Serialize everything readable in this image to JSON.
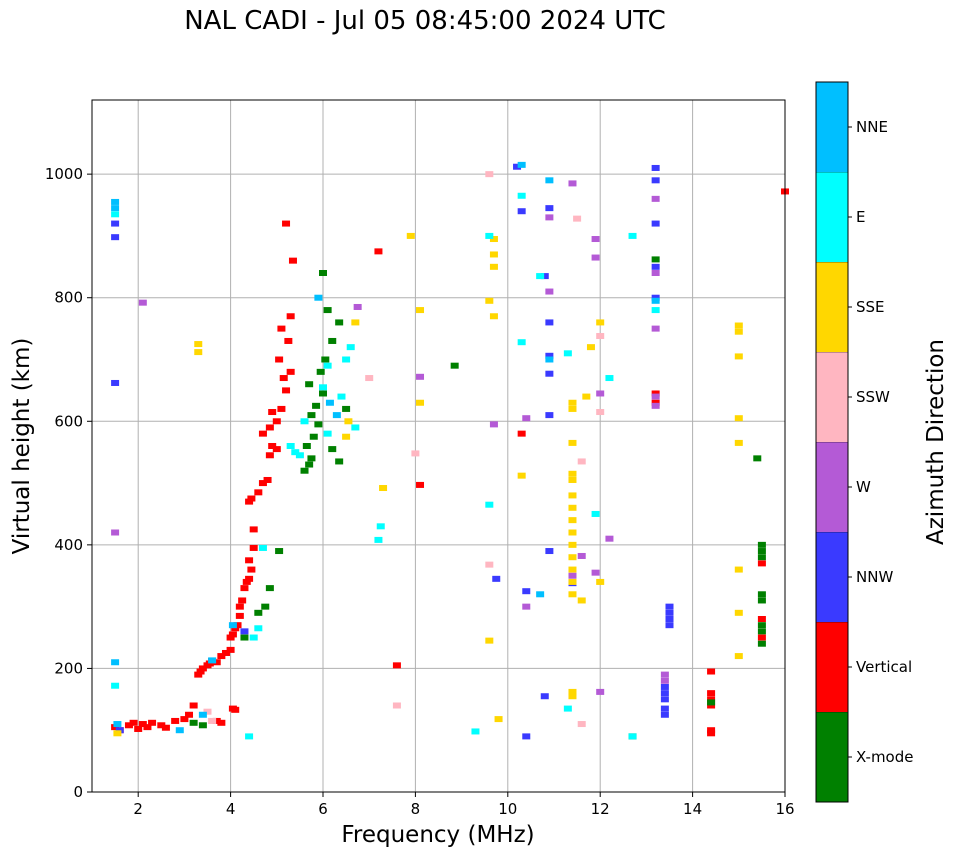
{
  "chart_data": {
    "type": "scatter",
    "title": "NAL CADI - Jul 05 08:45:00 2024 UTC",
    "xlabel": "Frequency (MHz)",
    "ylabel": "Virtual height (km)",
    "xlim": [
      1,
      16
    ],
    "ylim": [
      0,
      1120
    ],
    "xticks": [
      "2",
      "4",
      "6",
      "8",
      "10",
      "12",
      "14",
      "16"
    ],
    "yticks": [
      "0",
      "200",
      "400",
      "600",
      "800",
      "1000"
    ],
    "grid": true,
    "colorbar": {
      "label": "Azimuth Direction",
      "categories": [
        "X-mode",
        "Vertical",
        "NNW",
        "W",
        "SSW",
        "SSE",
        "E",
        "NNE"
      ],
      "colors": {
        "X-mode": "#008000",
        "Vertical": "#ff0000",
        "NNW": "#3a3aff",
        "W": "#b45ad6",
        "SSW": "#ffb6c1",
        "SSE": "#ffd700",
        "E": "#00ffff",
        "NNE": "#00bfff"
      }
    },
    "series": [
      {
        "name": "Vertical",
        "points": [
          [
            1.5,
            105
          ],
          [
            1.6,
            100
          ],
          [
            1.8,
            108
          ],
          [
            1.9,
            112
          ],
          [
            2.0,
            102
          ],
          [
            2.1,
            110
          ],
          [
            2.2,
            105
          ],
          [
            2.3,
            112
          ],
          [
            2.5,
            108
          ],
          [
            2.6,
            104
          ],
          [
            2.8,
            115
          ],
          [
            3.0,
            118
          ],
          [
            3.1,
            125
          ],
          [
            3.2,
            140
          ],
          [
            3.3,
            190
          ],
          [
            3.35,
            195
          ],
          [
            3.4,
            200
          ],
          [
            3.5,
            205
          ],
          [
            3.55,
            208
          ],
          [
            3.6,
            212
          ],
          [
            3.7,
            210
          ],
          [
            3.8,
            220
          ],
          [
            3.9,
            225
          ],
          [
            4.0,
            230
          ],
          [
            4.0,
            250
          ],
          [
            4.05,
            255
          ],
          [
            4.1,
            265
          ],
          [
            4.15,
            270
          ],
          [
            4.2,
            285
          ],
          [
            4.2,
            300
          ],
          [
            4.25,
            310
          ],
          [
            4.3,
            330
          ],
          [
            4.35,
            340
          ],
          [
            4.4,
            345
          ],
          [
            4.45,
            360
          ],
          [
            4.4,
            375
          ],
          [
            4.5,
            395
          ],
          [
            4.5,
            425
          ],
          [
            4.4,
            470
          ],
          [
            4.45,
            475
          ],
          [
            4.6,
            485
          ],
          [
            4.7,
            500
          ],
          [
            4.8,
            505
          ],
          [
            4.85,
            545
          ],
          [
            4.9,
            560
          ],
          [
            5.0,
            555
          ],
          [
            4.7,
            580
          ],
          [
            4.85,
            590
          ],
          [
            5.0,
            600
          ],
          [
            4.9,
            615
          ],
          [
            5.1,
            620
          ],
          [
            5.2,
            650
          ],
          [
            5.15,
            670
          ],
          [
            5.3,
            680
          ],
          [
            5.05,
            700
          ],
          [
            5.25,
            730
          ],
          [
            5.1,
            750
          ],
          [
            5.3,
            770
          ],
          [
            5.35,
            860
          ],
          [
            5.2,
            920
          ],
          [
            3.7,
            115
          ],
          [
            3.8,
            112
          ],
          [
            4.05,
            135
          ],
          [
            4.1,
            133
          ],
          [
            10.3,
            580
          ],
          [
            8.1,
            497
          ],
          [
            7.6,
            205
          ],
          [
            7.2,
            875
          ],
          [
            14.4,
            95
          ],
          [
            14.4,
            100
          ],
          [
            14.4,
            140
          ],
          [
            14.4,
            150
          ],
          [
            14.4,
            160
          ],
          [
            14.4,
            195
          ],
          [
            13.2,
            630
          ],
          [
            13.2,
            645
          ],
          [
            15.5,
            250
          ],
          [
            15.5,
            370
          ],
          [
            15.5,
            280
          ],
          [
            16.0,
            972
          ]
        ]
      },
      {
        "name": "X-mode",
        "points": [
          [
            3.2,
            112
          ],
          [
            3.4,
            108
          ],
          [
            4.3,
            250
          ],
          [
            4.6,
            290
          ],
          [
            4.75,
            300
          ],
          [
            4.85,
            330
          ],
          [
            5.05,
            390
          ],
          [
            5.6,
            520
          ],
          [
            5.7,
            530
          ],
          [
            5.75,
            540
          ],
          [
            5.65,
            560
          ],
          [
            5.8,
            575
          ],
          [
            5.9,
            595
          ],
          [
            5.75,
            610
          ],
          [
            5.85,
            625
          ],
          [
            6.0,
            645
          ],
          [
            5.7,
            660
          ],
          [
            5.95,
            680
          ],
          [
            6.05,
            700
          ],
          [
            6.2,
            730
          ],
          [
            6.35,
            760
          ],
          [
            6.1,
            780
          ],
          [
            6.0,
            840
          ],
          [
            6.35,
            535
          ],
          [
            6.2,
            555
          ],
          [
            6.5,
            620
          ],
          [
            8.85,
            690
          ],
          [
            12.7,
            90
          ],
          [
            15.5,
            240
          ],
          [
            15.5,
            260
          ],
          [
            15.5,
            270
          ],
          [
            15.5,
            310
          ],
          [
            15.5,
            320
          ],
          [
            15.5,
            380
          ],
          [
            15.5,
            390
          ],
          [
            15.5,
            400
          ],
          [
            14.4,
            145
          ],
          [
            15.4,
            540
          ],
          [
            13.2,
            862
          ]
        ]
      },
      {
        "name": "NNW",
        "points": [
          [
            1.5,
            920
          ],
          [
            1.5,
            898
          ],
          [
            1.5,
            662
          ],
          [
            1.6,
            100
          ],
          [
            4.3,
            260
          ],
          [
            10.3,
            940
          ],
          [
            10.2,
            1012
          ],
          [
            10.4,
            90
          ],
          [
            10.8,
            835
          ],
          [
            10.9,
            945
          ],
          [
            10.9,
            760
          ],
          [
            10.9,
            706
          ],
          [
            10.9,
            677
          ],
          [
            10.9,
            610
          ],
          [
            10.9,
            390
          ],
          [
            10.8,
            155
          ],
          [
            11.4,
            338
          ],
          [
            13.2,
            800
          ],
          [
            13.2,
            850
          ],
          [
            13.2,
            1010
          ],
          [
            13.2,
            920
          ],
          [
            13.2,
            990
          ],
          [
            13.5,
            270
          ],
          [
            13.5,
            280
          ],
          [
            13.5,
            290
          ],
          [
            13.5,
            300
          ],
          [
            13.4,
            125
          ],
          [
            13.4,
            135
          ],
          [
            13.4,
            150
          ],
          [
            13.4,
            160
          ],
          [
            13.4,
            170
          ],
          [
            9.75,
            345
          ],
          [
            10.4,
            325
          ]
        ]
      },
      {
        "name": "W",
        "points": [
          [
            1.5,
            420
          ],
          [
            2.1,
            792
          ],
          [
            6.75,
            785
          ],
          [
            8.1,
            672
          ],
          [
            9.7,
            595
          ],
          [
            10.4,
            605
          ],
          [
            10.4,
            300
          ],
          [
            10.9,
            930
          ],
          [
            10.9,
            810
          ],
          [
            11.4,
            985
          ],
          [
            11.4,
            350
          ],
          [
            11.6,
            382
          ],
          [
            11.9,
            895
          ],
          [
            11.9,
            865
          ],
          [
            12.0,
            645
          ],
          [
            12.0,
            162
          ],
          [
            12.2,
            410
          ],
          [
            13.2,
            750
          ],
          [
            13.2,
            640
          ],
          [
            13.2,
            625
          ],
          [
            13.2,
            960
          ],
          [
            13.2,
            840
          ],
          [
            13.4,
            180
          ],
          [
            13.4,
            190
          ],
          [
            11.9,
            355
          ]
        ]
      },
      {
        "name": "SSW",
        "points": [
          [
            3.6,
            115
          ],
          [
            3.5,
            130
          ],
          [
            9.6,
            368
          ],
          [
            9.6,
            1000
          ],
          [
            11.6,
            110
          ],
          [
            11.6,
            535
          ],
          [
            12.0,
            738
          ],
          [
            12.0,
            615
          ],
          [
            11.5,
            928
          ],
          [
            7.0,
            670
          ],
          [
            8.0,
            548
          ],
          [
            7.6,
            140
          ]
        ]
      },
      {
        "name": "SSE",
        "points": [
          [
            1.55,
            95
          ],
          [
            3.3,
            725
          ],
          [
            3.3,
            712
          ],
          [
            6.7,
            760
          ],
          [
            6.5,
            575
          ],
          [
            6.55,
            600
          ],
          [
            7.3,
            492
          ],
          [
            7.9,
            900
          ],
          [
            8.1,
            780
          ],
          [
            8.1,
            630
          ],
          [
            9.6,
            795
          ],
          [
            9.7,
            895
          ],
          [
            9.7,
            870
          ],
          [
            9.7,
            850
          ],
          [
            9.7,
            770
          ],
          [
            9.6,
            245
          ],
          [
            9.8,
            118
          ],
          [
            10.3,
            512
          ],
          [
            11.4,
            320
          ],
          [
            11.4,
            340
          ],
          [
            11.4,
            360
          ],
          [
            11.4,
            380
          ],
          [
            11.4,
            400
          ],
          [
            11.4,
            420
          ],
          [
            11.4,
            440
          ],
          [
            11.4,
            460
          ],
          [
            11.4,
            480
          ],
          [
            11.4,
            505
          ],
          [
            11.4,
            515
          ],
          [
            11.4,
            565
          ],
          [
            11.4,
            620
          ],
          [
            11.4,
            630
          ],
          [
            11.4,
            155
          ],
          [
            11.4,
            162
          ],
          [
            11.6,
            310
          ],
          [
            11.7,
            640
          ],
          [
            11.8,
            720
          ],
          [
            12.0,
            340
          ],
          [
            12.0,
            760
          ],
          [
            15.0,
            220
          ],
          [
            15.0,
            290
          ],
          [
            15.0,
            360
          ],
          [
            15.0,
            565
          ],
          [
            15.0,
            605
          ],
          [
            15.0,
            705
          ],
          [
            15.0,
            745
          ],
          [
            15.0,
            755
          ]
        ]
      },
      {
        "name": "E",
        "points": [
          [
            1.5,
            172
          ],
          [
            1.5,
            935
          ],
          [
            4.4,
            90
          ],
          [
            4.5,
            250
          ],
          [
            4.6,
            265
          ],
          [
            4.7,
            395
          ],
          [
            5.3,
            560
          ],
          [
            5.4,
            550
          ],
          [
            5.5,
            545
          ],
          [
            5.6,
            600
          ],
          [
            6.0,
            655
          ],
          [
            6.1,
            690
          ],
          [
            6.1,
            580
          ],
          [
            6.4,
            640
          ],
          [
            6.5,
            700
          ],
          [
            6.6,
            720
          ],
          [
            6.7,
            590
          ],
          [
            7.2,
            408
          ],
          [
            7.25,
            430
          ],
          [
            9.6,
            900
          ],
          [
            9.6,
            465
          ],
          [
            9.3,
            98
          ],
          [
            10.3,
            728
          ],
          [
            10.3,
            965
          ],
          [
            10.7,
            835
          ],
          [
            11.3,
            710
          ],
          [
            11.3,
            135
          ],
          [
            11.9,
            450
          ],
          [
            12.2,
            670
          ],
          [
            12.7,
            90
          ],
          [
            12.7,
            900
          ],
          [
            13.2,
            780
          ]
        ]
      },
      {
        "name": "NNE",
        "points": [
          [
            1.5,
            210
          ],
          [
            1.5,
            955
          ],
          [
            1.5,
            945
          ],
          [
            1.55,
            110
          ],
          [
            2.9,
            100
          ],
          [
            3.4,
            125
          ],
          [
            3.6,
            213
          ],
          [
            4.05,
            270
          ],
          [
            5.9,
            800
          ],
          [
            6.15,
            630
          ],
          [
            6.3,
            610
          ],
          [
            10.3,
            1015
          ],
          [
            10.7,
            320
          ],
          [
            10.9,
            990
          ],
          [
            10.9,
            700
          ],
          [
            13.2,
            795
          ]
        ]
      }
    ]
  }
}
